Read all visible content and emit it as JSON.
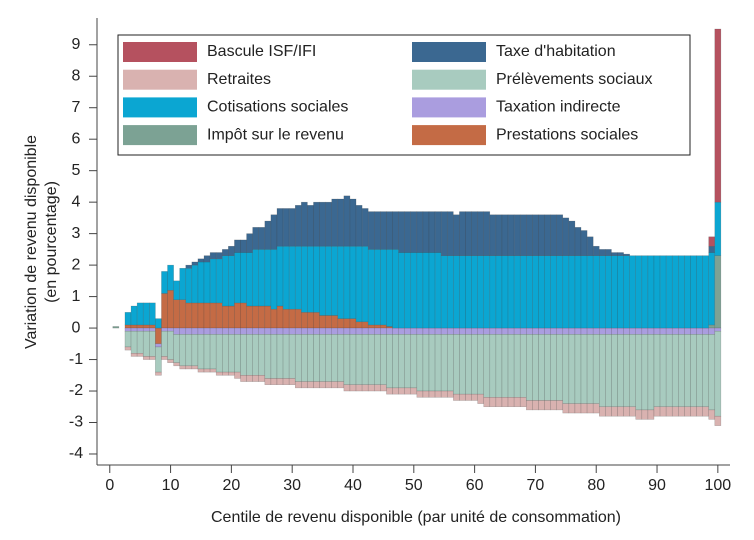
{
  "chart_data": {
    "type": "stacked_bar",
    "x_label": "Centile de revenu disponible (par unité de consommation)",
    "y_label": [
      "Variation de revenu disponible",
      "(en pourcentage)"
    ],
    "legend_position": "top",
    "x": [
      1,
      2,
      3,
      4,
      5,
      6,
      7,
      8,
      9,
      10,
      11,
      12,
      13,
      14,
      15,
      16,
      17,
      18,
      19,
      20,
      21,
      22,
      23,
      24,
      25,
      26,
      27,
      28,
      29,
      30,
      31,
      32,
      33,
      34,
      35,
      36,
      37,
      38,
      39,
      40,
      41,
      42,
      43,
      44,
      45,
      46,
      47,
      48,
      49,
      50,
      51,
      52,
      53,
      54,
      55,
      56,
      57,
      58,
      59,
      60,
      61,
      62,
      63,
      64,
      65,
      66,
      67,
      68,
      69,
      70,
      71,
      72,
      73,
      74,
      75,
      76,
      77,
      78,
      79,
      80,
      81,
      82,
      83,
      84,
      85,
      86,
      87,
      88,
      89,
      90,
      91,
      92,
      93,
      94,
      95,
      96,
      97,
      98,
      99,
      100
    ],
    "xlim": [
      -2.1,
      102
    ],
    "xticks": [
      0,
      10,
      20,
      30,
      40,
      50,
      60,
      70,
      80,
      90,
      100
    ],
    "ylim": [
      -4.35,
      9.85
    ],
    "yticks": [
      -4,
      -3,
      -2,
      -1,
      0,
      1,
      2,
      3,
      4,
      5,
      6,
      7,
      8,
      9
    ],
    "series": [
      {
        "name": "Bascule ISF/IFI",
        "color": "#b5515f",
        "values": [
          0,
          0,
          0,
          0,
          0,
          0,
          0,
          0,
          0,
          0,
          0,
          0,
          0,
          0,
          0,
          0,
          0,
          0,
          0,
          0,
          0,
          0,
          0,
          0,
          0,
          0,
          0,
          0,
          0,
          0,
          0,
          0,
          0,
          0,
          0,
          0,
          0,
          0,
          0,
          0,
          0,
          0,
          0,
          0,
          0,
          0,
          0,
          0,
          0,
          0,
          0,
          0,
          0,
          0,
          0,
          0,
          0,
          0,
          0,
          0,
          0,
          0,
          0,
          0,
          0,
          0,
          0,
          0,
          0,
          0,
          0,
          0,
          0,
          0,
          0,
          0,
          0,
          0,
          0,
          0,
          0,
          0,
          0,
          0,
          0,
          0,
          0,
          0,
          0,
          0,
          0,
          0,
          0,
          0,
          0,
          0,
          0,
          0,
          0.3,
          5.5
        ]
      },
      {
        "name": "Taxe d'habitation",
        "color": "#3b6891",
        "values": [
          0,
          0,
          0,
          0,
          0,
          0,
          0,
          0,
          0,
          0,
          0,
          0,
          0.1,
          0.1,
          0.1,
          0.2,
          0.2,
          0.2,
          0.2,
          0.3,
          0.4,
          0.4,
          0.6,
          0.7,
          0.7,
          0.9,
          1.1,
          1.2,
          1.2,
          1.2,
          1.3,
          1.4,
          1.3,
          1.4,
          1.4,
          1.4,
          1.5,
          1.5,
          1.6,
          1.5,
          1.3,
          1.2,
          1.2,
          1.2,
          1.2,
          1.2,
          1.2,
          1.3,
          1.3,
          1.3,
          1.3,
          1.3,
          1.3,
          1.3,
          1.4,
          1.4,
          1.3,
          1.4,
          1.4,
          1.4,
          1.4,
          1.4,
          1.3,
          1.3,
          1.3,
          1.3,
          1.3,
          1.3,
          1.3,
          1.3,
          1.3,
          1.3,
          1.3,
          1.3,
          1.2,
          1.1,
          0.9,
          0.8,
          0.6,
          0.3,
          0.2,
          0.2,
          0.1,
          0.1,
          0.05,
          0,
          0,
          0,
          0,
          0,
          0,
          0,
          0,
          0,
          0,
          0,
          0,
          0,
          0.2,
          0
        ]
      },
      {
        "name": "Retraites",
        "color": "#d9b2b0",
        "values": [
          0,
          0,
          -0.1,
          -0.1,
          -0.1,
          -0.1,
          -0.1,
          -0.1,
          -0.1,
          -0.1,
          -0.1,
          -0.1,
          -0.1,
          -0.1,
          -0.1,
          -0.1,
          -0.1,
          -0.1,
          -0.1,
          -0.1,
          -0.2,
          -0.2,
          -0.2,
          -0.2,
          -0.2,
          -0.2,
          -0.2,
          -0.2,
          -0.2,
          -0.2,
          -0.2,
          -0.2,
          -0.2,
          -0.2,
          -0.2,
          -0.2,
          -0.2,
          -0.2,
          -0.2,
          -0.2,
          -0.2,
          -0.2,
          -0.2,
          -0.2,
          -0.2,
          -0.2,
          -0.2,
          -0.2,
          -0.2,
          -0.2,
          -0.2,
          -0.2,
          -0.2,
          -0.2,
          -0.2,
          -0.2,
          -0.2,
          -0.2,
          -0.2,
          -0.2,
          -0.3,
          -0.3,
          -0.3,
          -0.3,
          -0.3,
          -0.3,
          -0.3,
          -0.3,
          -0.3,
          -0.3,
          -0.3,
          -0.3,
          -0.3,
          -0.3,
          -0.3,
          -0.3,
          -0.3,
          -0.3,
          -0.3,
          -0.3,
          -0.3,
          -0.3,
          -0.3,
          -0.3,
          -0.3,
          -0.3,
          -0.3,
          -0.3,
          -0.3,
          -0.3,
          -0.3,
          -0.3,
          -0.3,
          -0.3,
          -0.3,
          -0.3,
          -0.3,
          -0.3,
          -0.3,
          -0.3
        ]
      },
      {
        "name": "Prélèvements sociaux",
        "color": "#a8cbbf",
        "values": [
          0,
          0,
          -0.5,
          -0.7,
          -0.7,
          -0.8,
          -0.8,
          -0.8,
          -0.8,
          -0.9,
          -0.9,
          -1.0,
          -1.0,
          -1.0,
          -1.1,
          -1.1,
          -1.1,
          -1.2,
          -1.2,
          -1.2,
          -1.2,
          -1.3,
          -1.3,
          -1.3,
          -1.3,
          -1.4,
          -1.4,
          -1.4,
          -1.4,
          -1.4,
          -1.5,
          -1.5,
          -1.5,
          -1.5,
          -1.5,
          -1.5,
          -1.5,
          -1.5,
          -1.6,
          -1.6,
          -1.6,
          -1.6,
          -1.6,
          -1.6,
          -1.6,
          -1.7,
          -1.7,
          -1.7,
          -1.7,
          -1.7,
          -1.8,
          -1.8,
          -1.8,
          -1.8,
          -1.8,
          -1.8,
          -1.9,
          -1.9,
          -1.9,
          -1.9,
          -1.9,
          -2.0,
          -2.0,
          -2.0,
          -2.0,
          -2.0,
          -2.0,
          -2.0,
          -2.1,
          -2.1,
          -2.1,
          -2.1,
          -2.1,
          -2.1,
          -2.2,
          -2.2,
          -2.2,
          -2.2,
          -2.2,
          -2.2,
          -2.3,
          -2.3,
          -2.3,
          -2.3,
          -2.3,
          -2.3,
          -2.4,
          -2.4,
          -2.4,
          -2.3,
          -2.3,
          -2.3,
          -2.3,
          -2.3,
          -2.3,
          -2.3,
          -2.3,
          -2.3,
          -2.4,
          -2.7
        ]
      },
      {
        "name": "Cotisations sociales",
        "color": "#0ba6d2",
        "values": [
          0,
          0,
          0.4,
          0.6,
          0.7,
          0.7,
          0.7,
          0.3,
          0.7,
          0.8,
          0.6,
          1.0,
          1.1,
          1.2,
          1.3,
          1.3,
          1.4,
          1.4,
          1.6,
          1.6,
          1.6,
          1.6,
          1.7,
          1.8,
          1.8,
          1.8,
          1.9,
          1.9,
          2.0,
          2.0,
          2.0,
          2.1,
          2.1,
          2.1,
          2.2,
          2.2,
          2.2,
          2.3,
          2.3,
          2.3,
          2.4,
          2.4,
          2.4,
          2.4,
          2.4,
          2.45,
          2.5,
          2.4,
          2.4,
          2.4,
          2.4,
          2.4,
          2.4,
          2.4,
          2.3,
          2.3,
          2.3,
          2.3,
          2.3,
          2.3,
          2.3,
          2.3,
          2.3,
          2.3,
          2.3,
          2.3,
          2.3,
          2.3,
          2.3,
          2.3,
          2.3,
          2.3,
          2.3,
          2.3,
          2.3,
          2.3,
          2.3,
          2.3,
          2.3,
          2.3,
          2.3,
          2.3,
          2.3,
          2.3,
          2.3,
          2.3,
          2.3,
          2.3,
          2.3,
          2.3,
          2.3,
          2.3,
          2.3,
          2.3,
          2.3,
          2.3,
          2.3,
          2.3,
          2.3,
          1.7
        ]
      },
      {
        "name": "Taxation indirecte",
        "color": "#aa9ddf",
        "values": [
          0,
          0,
          -0.1,
          -0.1,
          -0.1,
          -0.1,
          -0.1,
          -0.1,
          -0.1,
          -0.1,
          -0.2,
          -0.2,
          -0.2,
          -0.2,
          -0.2,
          -0.2,
          -0.2,
          -0.2,
          -0.2,
          -0.2,
          -0.2,
          -0.2,
          -0.2,
          -0.2,
          -0.2,
          -0.2,
          -0.2,
          -0.2,
          -0.2,
          -0.2,
          -0.2,
          -0.2,
          -0.2,
          -0.2,
          -0.2,
          -0.2,
          -0.2,
          -0.2,
          -0.2,
          -0.2,
          -0.2,
          -0.2,
          -0.2,
          -0.2,
          -0.2,
          -0.2,
          -0.2,
          -0.2,
          -0.2,
          -0.2,
          -0.2,
          -0.2,
          -0.2,
          -0.2,
          -0.2,
          -0.2,
          -0.2,
          -0.2,
          -0.2,
          -0.2,
          -0.2,
          -0.2,
          -0.2,
          -0.2,
          -0.2,
          -0.2,
          -0.2,
          -0.2,
          -0.2,
          -0.2,
          -0.2,
          -0.2,
          -0.2,
          -0.2,
          -0.2,
          -0.2,
          -0.2,
          -0.2,
          -0.2,
          -0.2,
          -0.2,
          -0.2,
          -0.2,
          -0.2,
          -0.2,
          -0.2,
          -0.2,
          -0.2,
          -0.2,
          -0.2,
          -0.2,
          -0.2,
          -0.2,
          -0.2,
          -0.2,
          -0.2,
          -0.2,
          -0.2,
          -0.2,
          -0.1
        ]
      },
      {
        "name": "Impôt sur le revenu",
        "color": "#7ca294",
        "values": [
          0.05,
          0,
          0,
          0,
          0,
          0,
          0,
          0,
          0,
          0,
          0,
          0,
          0,
          0,
          0,
          0,
          0,
          0,
          0,
          0,
          0,
          0,
          0,
          0,
          0,
          0,
          0,
          0,
          0,
          0,
          0,
          0,
          0,
          0,
          0,
          0,
          0,
          0,
          0,
          0,
          0,
          0,
          0,
          0,
          0,
          0,
          0,
          0,
          0,
          0,
          0,
          0,
          0,
          0,
          0,
          0,
          0,
          0,
          0,
          0,
          0,
          0,
          0,
          0,
          0,
          0,
          0,
          0,
          0,
          0,
          0,
          0,
          0,
          0,
          0,
          0,
          0,
          0,
          0,
          0,
          0,
          0,
          0,
          0,
          0,
          0,
          0,
          0,
          0,
          0,
          0,
          0,
          0,
          0,
          0,
          0,
          0,
          0,
          0.1,
          2.3
        ]
      },
      {
        "name": "Prestations sociales",
        "color": "#c46b45",
        "values": [
          0,
          0,
          0.1,
          0.1,
          0.1,
          0.1,
          0.1,
          -0.5,
          1.1,
          1.2,
          0.9,
          0.9,
          0.8,
          0.8,
          0.8,
          0.8,
          0.8,
          0.8,
          0.7,
          0.7,
          0.8,
          0.8,
          0.7,
          0.7,
          0.7,
          0.7,
          0.6,
          0.7,
          0.6,
          0.6,
          0.6,
          0.5,
          0.5,
          0.5,
          0.4,
          0.4,
          0.4,
          0.3,
          0.3,
          0.3,
          0.2,
          0.2,
          0.1,
          0.1,
          0.1,
          0.05,
          0,
          0,
          0,
          0,
          0,
          0,
          0,
          0,
          0,
          0,
          0,
          0,
          0,
          0,
          0,
          0,
          0,
          0,
          0,
          0,
          0,
          0,
          0,
          0,
          0,
          0,
          0,
          0,
          0,
          0,
          0,
          0,
          0,
          0,
          0,
          0,
          0,
          0,
          0,
          0,
          0,
          0,
          0,
          0,
          0,
          0,
          0,
          0,
          0,
          0,
          0,
          0,
          0,
          0
        ]
      }
    ]
  }
}
